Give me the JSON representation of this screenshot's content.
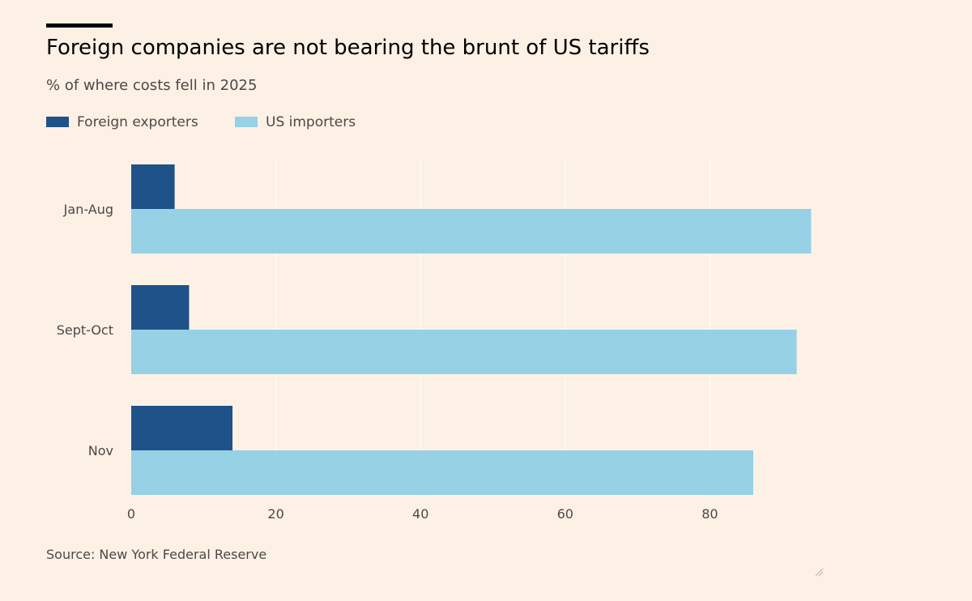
{
  "header": {
    "title": "Foreign companies are not bearing the brunt of US tariffs",
    "subtitle": "% of where costs fell in 2025"
  },
  "footer": {
    "source": "Source: New York Federal Reserve"
  },
  "colors": {
    "background": "#fdf1e6",
    "foreign_exporters": "#1f5289",
    "us_importers": "#96d1e6",
    "gridline": "#ffffff",
    "text": "#4d4845"
  },
  "chart_data": {
    "type": "bar",
    "orientation": "horizontal",
    "title": "Foreign companies are not bearing the brunt of US tariffs",
    "subtitle": "% of where costs fell in 2025",
    "categories": [
      "Jan-Aug",
      "Sept-Oct",
      "Nov"
    ],
    "series": [
      {
        "name": "Foreign exporters",
        "values": [
          6,
          8,
          14
        ],
        "color": "#1f5289"
      },
      {
        "name": "US importers",
        "values": [
          94,
          92,
          86
        ],
        "color": "#96d1e6"
      }
    ],
    "x_ticks": [
      0,
      20,
      40,
      60,
      80
    ],
    "xlim": [
      0,
      100
    ],
    "grid": true,
    "legend_position": "top-left",
    "source": "Source: New York Federal Reserve"
  }
}
